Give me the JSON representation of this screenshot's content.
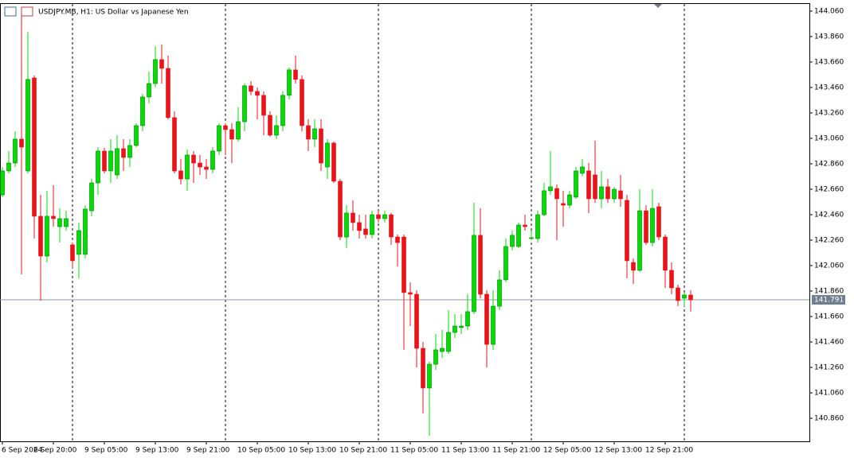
{
  "chart_data": {
    "type": "candlestick",
    "title": "USDJPY.MB, H1:  US Dollar vs Japanese Yen",
    "up_color": "#00e000",
    "down_color": "#e8141a",
    "categories": [
      "6 Sep 2024",
      null,
      null,
      null,
      null,
      null,
      null,
      null,
      "6 Sep 20:00",
      null,
      null,
      null,
      null,
      null,
      null,
      null,
      "9 Sep 05:00",
      null,
      null,
      null,
      null,
      null,
      null,
      null,
      "9 Sep 13:00",
      null,
      null,
      null,
      null,
      null,
      null,
      null,
      "9 Sep 21:00",
      null,
      null,
      null,
      null,
      null,
      null,
      null,
      "10 Sep 05:00",
      null,
      null,
      null,
      null,
      null,
      null,
      null,
      "10 Sep 13:00",
      null,
      null,
      null,
      null,
      null,
      null,
      null,
      "10 Sep 21:00",
      null,
      null,
      null,
      null,
      null,
      null,
      null,
      "11 Sep 05:00",
      null,
      null,
      null,
      null,
      null,
      null,
      null,
      "11 Sep 13:00",
      null,
      null,
      null,
      null,
      null,
      null,
      null,
      "11 Sep 21:00",
      null,
      null,
      null,
      null,
      null,
      null,
      null,
      "12 Sep 05:00",
      null,
      null,
      null,
      null,
      null,
      null,
      null,
      "12 Sep 13:00",
      null,
      null,
      null,
      null,
      null,
      null,
      null,
      "12 Sep 21:00",
      null,
      null,
      null,
      null
    ],
    "open": [
      142.616,
      142.804,
      142.866,
      143.054,
      142.804,
      143.535,
      142.448,
      142.135,
      142.448,
      142.366,
      142.366,
      142.223,
      142.148,
      142.148,
      142.491,
      142.71,
      142.96,
      142.804,
      142.773,
      142.979,
      142.91,
      143.004,
      143.16,
      143.385,
      143.491,
      143.679,
      143.61,
      143.223,
      142.804,
      142.741,
      142.929,
      142.866,
      142.835,
      142.816,
      142.96,
      143.16,
      143.129,
      143.054,
      143.191,
      143.473,
      143.429,
      143.398,
      143.241,
      143.085,
      143.16,
      143.398,
      143.598,
      143.523,
      143.16,
      143.054,
      143.135,
      142.835,
      143.023,
      142.723,
      142.285,
      142.473,
      142.398,
      142.348,
      142.304,
      142.46,
      142.429,
      142.46,
      142.285,
      142.285,
      141.848,
      141.835,
      141.41,
      141.098,
      141.285,
      141.385,
      141.385,
      141.535,
      141.573,
      141.585,
      141.698,
      142.298,
      141.835,
      141.441,
      141.741,
      141.948,
      142.21,
      142.21,
      142.379,
      142.273,
      142.273,
      142.46,
      142.648,
      142.666,
      142.548,
      142.535,
      142.598,
      142.785,
      142.804,
      142.773,
      142.585,
      142.679,
      142.585,
      142.648,
      142.573,
      142.085,
      142.023,
      142.491,
      142.241,
      142.523,
      142.285,
      142.023,
      141.885,
      141.804,
      141.829
    ],
    "high": [
      142.835,
      142.96,
      143.116,
      144.023,
      143.898,
      143.554,
      142.616,
      142.648,
      142.691,
      142.51,
      142.491,
      142.241,
      142.398,
      142.535,
      142.741,
      142.991,
      142.985,
      143.054,
      143.085,
      143.054,
      143.054,
      143.179,
      143.41,
      143.585,
      143.785,
      143.798,
      143.71,
      143.273,
      142.898,
      142.973,
      142.96,
      142.929,
      142.898,
      142.991,
      143.179,
      143.179,
      143.179,
      143.304,
      143.491,
      143.51,
      143.46,
      143.429,
      143.273,
      143.241,
      143.429,
      143.616,
      143.71,
      143.554,
      143.21,
      143.21,
      143.21,
      143.054,
      143.035,
      142.741,
      142.535,
      142.573,
      142.46,
      142.46,
      142.491,
      142.491,
      142.491,
      142.473,
      142.304,
      142.304,
      141.929,
      141.866,
      141.46,
      141.304,
      141.523,
      141.554,
      141.71,
      141.679,
      141.679,
      141.835,
      142.554,
      142.51,
      141.866,
      141.866,
      142.023,
      142.273,
      142.335,
      142.398,
      142.46,
      142.335,
      142.491,
      142.71,
      142.96,
      142.698,
      142.648,
      142.648,
      142.835,
      142.898,
      142.866,
      143.041,
      142.804,
      142.741,
      142.679,
      142.773,
      142.616,
      142.116,
      142.66,
      142.535,
      142.66,
      142.554,
      142.304,
      142.085,
      141.91,
      141.848,
      141.866
    ],
    "low": [
      142.598,
      142.785,
      142.835,
      141.991,
      142.785,
      142.273,
      141.785,
      142.085,
      142.366,
      142.241,
      142.335,
      142.035,
      141.96,
      142.116,
      142.448,
      142.616,
      142.785,
      142.71,
      142.741,
      142.804,
      142.835,
      142.991,
      143.116,
      143.335,
      143.46,
      143.491,
      143.21,
      142.785,
      142.698,
      142.648,
      142.71,
      142.773,
      142.741,
      142.785,
      142.929,
      142.929,
      142.866,
      143.035,
      143.116,
      143.398,
      143.21,
      143.085,
      143.073,
      143.054,
      143.116,
      143.366,
      143.491,
      143.116,
      142.96,
      142.991,
      142.804,
      142.741,
      142.71,
      142.26,
      142.198,
      142.335,
      142.273,
      142.273,
      142.273,
      142.398,
      142.398,
      142.223,
      142.054,
      141.398,
      141.585,
      141.26,
      140.898,
      140.723,
      141.241,
      141.335,
      141.366,
      141.491,
      141.523,
      141.554,
      141.679,
      141.804,
      141.26,
      141.398,
      141.71,
      141.929,
      142.179,
      142.198,
      142.335,
      142.26,
      142.241,
      142.448,
      142.616,
      142.26,
      142.366,
      142.51,
      142.585,
      142.76,
      142.473,
      142.554,
      142.51,
      142.554,
      142.554,
      142.523,
      141.96,
      141.916,
      142.01,
      142.223,
      142.21,
      142.26,
      141.885,
      141.835,
      141.741,
      141.741,
      141.698
    ],
    "close": [
      142.804,
      142.866,
      143.054,
      142.991,
      143.523,
      142.448,
      142.135,
      142.448,
      142.429,
      142.429,
      142.429,
      142.098,
      142.335,
      142.504,
      142.71,
      142.96,
      142.804,
      142.96,
      142.979,
      142.91,
      143.004,
      143.16,
      143.385,
      143.491,
      143.679,
      143.61,
      143.223,
      142.804,
      142.741,
      142.929,
      142.866,
      142.835,
      142.816,
      142.96,
      143.16,
      143.129,
      143.054,
      143.191,
      143.473,
      143.429,
      143.398,
      143.241,
      143.085,
      143.16,
      143.398,
      143.598,
      143.523,
      143.16,
      143.054,
      143.135,
      142.866,
      143.023,
      142.723,
      142.285,
      142.473,
      142.398,
      142.335,
      142.304,
      142.46,
      142.429,
      142.46,
      142.285,
      142.241,
      141.848,
      141.835,
      141.41,
      141.098,
      141.285,
      141.398,
      141.41,
      141.535,
      141.585,
      141.585,
      141.698,
      142.298,
      141.835,
      141.441,
      141.741,
      141.948,
      142.21,
      142.298,
      142.379,
      142.366,
      142.279,
      142.46,
      142.648,
      142.679,
      142.585,
      142.535,
      142.616,
      142.804,
      142.835,
      142.585,
      142.585,
      142.679,
      142.585,
      142.66,
      142.585,
      142.098,
      142.023,
      142.491,
      142.241,
      142.51,
      142.285,
      142.023,
      141.885,
      141.785,
      141.829,
      141.791
    ],
    "last_price": 141.791,
    "ylim": [
      140.679,
      144.116
    ],
    "yticks": [
      {
        "value": 144.06,
        "label": "144.060"
      },
      {
        "value": 143.86,
        "label": "143.860"
      },
      {
        "value": 143.66,
        "label": "143.660"
      },
      {
        "value": 143.46,
        "label": "143.460"
      },
      {
        "value": 143.26,
        "label": "143.260"
      },
      {
        "value": 143.06,
        "label": "143.060"
      },
      {
        "value": 142.86,
        "label": "142.860"
      },
      {
        "value": 142.66,
        "label": "142.660"
      },
      {
        "value": 142.46,
        "label": "142.460"
      },
      {
        "value": 142.26,
        "label": "142.260"
      },
      {
        "value": 142.06,
        "label": "142.060"
      },
      {
        "value": 141.86,
        "label": "141.860"
      },
      {
        "value": 141.66,
        "label": "141.660"
      },
      {
        "value": 141.46,
        "label": "141.460"
      },
      {
        "value": 141.26,
        "label": "141.260"
      },
      {
        "value": 141.06,
        "label": "141.060"
      },
      {
        "value": 140.86,
        "label": "140.860"
      }
    ]
  }
}
